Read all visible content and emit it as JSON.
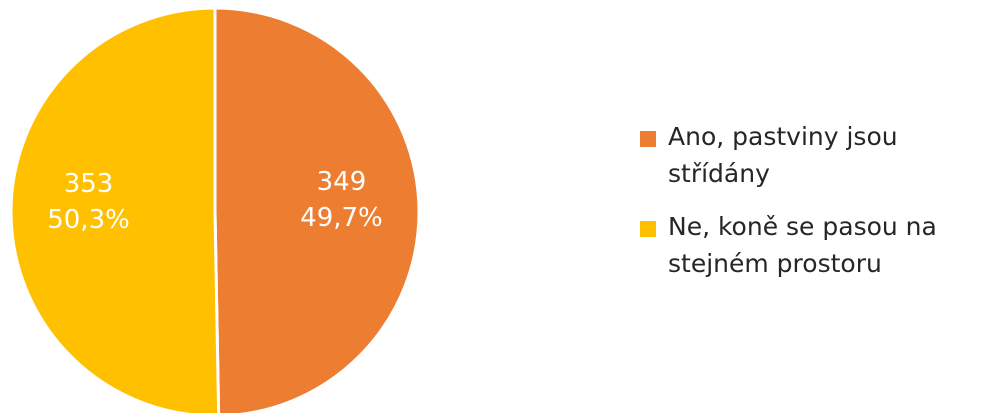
{
  "chart_data": {
    "type": "pie",
    "title": "",
    "legend_position": "right",
    "slices": [
      {
        "name": "Ano, pastviny jsou střídány",
        "value": 349,
        "percent_label": "49,7%",
        "color": "#ED7D31"
      },
      {
        "name": "Ne, koně se pasou na stejném prostoru",
        "value": 353,
        "percent_label": "50,3%",
        "color": "#FFC000"
      }
    ]
  }
}
